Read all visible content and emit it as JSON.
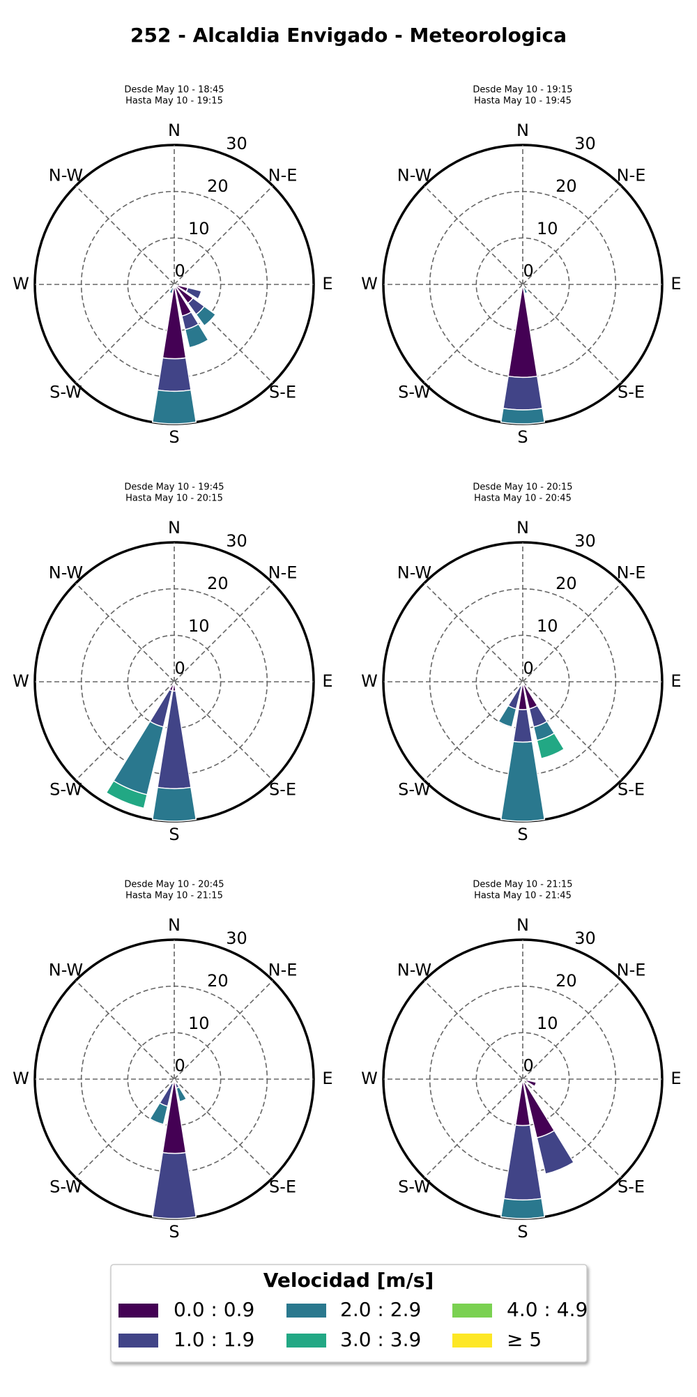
{
  "title": "252 - Alcaldia Envigado - Meteorologica",
  "legend": {
    "title": "Velocidad [m/s]",
    "entries": [
      {
        "name": "0.0 : 0.9",
        "color": "#440154"
      },
      {
        "name": "1.0 : 1.9",
        "color": "#414487"
      },
      {
        "name": "2.0 : 2.9",
        "color": "#2a788e"
      },
      {
        "name": "3.0 : 3.9",
        "color": "#22a884"
      },
      {
        "name": "4.0 : 4.9",
        "color": "#7ad151"
      },
      {
        "name": "≥ 5",
        "color": "#fde725"
      }
    ]
  },
  "chart_data": [
    {
      "type": "windrose",
      "subtitle": [
        "Desde May 10 - 18:45",
        "Hasta May 10 - 19:15"
      ],
      "categories": [
        "N",
        null,
        "N-E",
        null,
        "E",
        null,
        "S-E",
        null,
        "S",
        null,
        "S-W",
        null,
        "W",
        null,
        "N-W",
        null
      ],
      "rlim": [
        0,
        30
      ],
      "rticks": [
        0,
        10,
        20,
        30
      ],
      "series": [
        {
          "values": [
            0,
            0,
            0,
            0,
            0,
            3,
            5,
            7,
            16,
            0,
            0,
            0,
            0,
            0,
            0,
            0
          ]
        },
        {
          "values": [
            0,
            0,
            0,
            0,
            0,
            3,
            3,
            3,
            7,
            0,
            0,
            0,
            0,
            0,
            0,
            0
          ]
        },
        {
          "values": [
            0,
            0,
            0,
            0,
            0,
            0,
            3,
            4,
            7,
            2,
            0,
            0,
            0,
            0,
            0,
            0
          ]
        },
        {
          "values": [
            0,
            0,
            0,
            0,
            0,
            0,
            0,
            0,
            0,
            0,
            0,
            0,
            0,
            0,
            0,
            0
          ]
        },
        {
          "values": [
            0,
            0,
            0,
            0,
            0,
            0,
            0,
            0,
            0,
            0,
            0,
            0,
            0,
            0,
            0,
            0
          ]
        },
        {
          "values": [
            0,
            0,
            0,
            0,
            0,
            0,
            0,
            0,
            0,
            0,
            0,
            0,
            0,
            0,
            0,
            0
          ]
        }
      ]
    },
    {
      "type": "windrose",
      "subtitle": [
        "Desde May 10 - 19:15",
        "Hasta May 10 - 19:45"
      ],
      "categories": [
        "N",
        null,
        "N-E",
        null,
        "E",
        null,
        "S-E",
        null,
        "S",
        null,
        "S-W",
        null,
        "W",
        null,
        "N-W",
        null
      ],
      "rlim": [
        0,
        30
      ],
      "rticks": [
        0,
        10,
        20,
        30
      ],
      "series": [
        {
          "values": [
            0,
            0,
            0,
            0,
            0,
            0,
            0,
            0,
            20,
            0,
            0,
            0,
            0,
            0,
            0,
            0
          ]
        },
        {
          "values": [
            0,
            0,
            0,
            0,
            0,
            0,
            0,
            0,
            7,
            0,
            0,
            0,
            0,
            0,
            0,
            0
          ]
        },
        {
          "values": [
            0,
            0,
            0,
            0,
            0,
            0,
            0,
            2,
            3,
            0,
            0,
            0,
            0,
            0,
            0,
            0
          ]
        },
        {
          "values": [
            0,
            0,
            0,
            0,
            0,
            0,
            0,
            0,
            0,
            0,
            0,
            0,
            0,
            0,
            0,
            0
          ]
        },
        {
          "values": [
            0,
            0,
            0,
            0,
            0,
            0,
            0,
            0,
            0,
            0,
            0,
            0,
            0,
            0,
            0,
            0
          ]
        },
        {
          "values": [
            0,
            0,
            0,
            0,
            0,
            0,
            0,
            0,
            0,
            0,
            0,
            0,
            0,
            0,
            0,
            0
          ]
        }
      ]
    },
    {
      "type": "windrose",
      "subtitle": [
        "Desde May 10 - 19:45",
        "Hasta May 10 - 20:15"
      ],
      "categories": [
        "N",
        null,
        "N-E",
        null,
        "E",
        null,
        "S-E",
        null,
        "S",
        null,
        "S-W",
        null,
        "W",
        null,
        "N-W",
        null
      ],
      "rlim": [
        0,
        30
      ],
      "rticks": [
        0,
        10,
        20,
        30
      ],
      "series": [
        {
          "values": [
            0,
            0,
            0,
            0,
            0,
            0,
            0,
            0,
            2,
            2,
            0,
            0,
            0,
            0,
            0,
            0
          ]
        },
        {
          "values": [
            0,
            0,
            0,
            0,
            0,
            0,
            0,
            0,
            21,
            8,
            0,
            0,
            0,
            0,
            0,
            0
          ]
        },
        {
          "values": [
            0,
            0,
            0,
            0,
            0,
            0,
            0,
            0,
            7,
            15,
            0,
            0,
            0,
            0,
            0,
            0
          ]
        },
        {
          "values": [
            0,
            0,
            0,
            0,
            0,
            0,
            0,
            0,
            0,
            3,
            0,
            0,
            0,
            0,
            0,
            0
          ]
        },
        {
          "values": [
            0,
            0,
            0,
            0,
            0,
            0,
            0,
            0,
            0,
            0,
            0,
            0,
            0,
            0,
            0,
            0
          ]
        },
        {
          "values": [
            0,
            0,
            0,
            0,
            0,
            0,
            0,
            0,
            0,
            0,
            0,
            0,
            0,
            0,
            0,
            0
          ]
        }
      ]
    },
    {
      "type": "windrose",
      "subtitle": [
        "Desde May 10 - 20:15",
        "Hasta May 10 - 20:45"
      ],
      "categories": [
        "N",
        null,
        "N-E",
        null,
        "E",
        null,
        "S-E",
        null,
        "S",
        null,
        "S-W",
        null,
        "W",
        null,
        "N-W",
        null
      ],
      "rlim": [
        0,
        30
      ],
      "rticks": [
        0,
        10,
        20,
        30
      ],
      "series": [
        {
          "values": [
            0,
            0,
            0,
            0,
            0,
            0,
            0,
            6,
            6,
            1,
            0,
            0,
            0,
            0,
            0,
            0
          ]
        },
        {
          "values": [
            0,
            0,
            0,
            0,
            0,
            0,
            0,
            4,
            7,
            5,
            0,
            0,
            0,
            0,
            0,
            0
          ]
        },
        {
          "values": [
            0,
            0,
            0,
            0,
            0,
            0,
            0,
            3,
            17,
            4,
            0,
            0,
            0,
            0,
            0,
            0
          ]
        },
        {
          "values": [
            0,
            0,
            0,
            0,
            0,
            0,
            0,
            4,
            0,
            0,
            0,
            0,
            0,
            0,
            0,
            0
          ]
        },
        {
          "values": [
            0,
            0,
            0,
            0,
            0,
            0,
            0,
            0,
            0,
            0,
            0,
            0,
            0,
            0,
            0,
            0
          ]
        },
        {
          "values": [
            0,
            0,
            0,
            0,
            0,
            0,
            0,
            0,
            0,
            0,
            0,
            0,
            0,
            0,
            0,
            0
          ]
        }
      ]
    },
    {
      "type": "windrose",
      "subtitle": [
        "Desde May 10 - 20:45",
        "Hasta May 10 - 21:15"
      ],
      "categories": [
        "N",
        null,
        "N-E",
        null,
        "E",
        null,
        "S-E",
        null,
        "S",
        null,
        "S-W",
        null,
        "W",
        null,
        "N-W",
        null
      ],
      "rlim": [
        0,
        30
      ],
      "rticks": [
        0,
        10,
        20,
        30
      ],
      "series": [
        {
          "values": [
            0,
            0,
            0,
            0,
            0,
            0,
            0,
            1,
            16,
            1,
            0,
            0,
            0,
            0,
            0,
            0
          ]
        },
        {
          "values": [
            0,
            0,
            0,
            0,
            0,
            0,
            0,
            1,
            14,
            5,
            0,
            0,
            0,
            0,
            0,
            0
          ]
        },
        {
          "values": [
            0,
            0,
            0,
            0,
            0,
            0,
            0,
            3,
            0,
            4,
            0,
            0,
            0,
            0,
            0,
            0
          ]
        },
        {
          "values": [
            0,
            0,
            0,
            0,
            0,
            0,
            0,
            0,
            0,
            0,
            0,
            0,
            0,
            0,
            0,
            0
          ]
        },
        {
          "values": [
            0,
            0,
            0,
            0,
            0,
            0,
            0,
            0,
            0,
            0,
            0,
            0,
            0,
            0,
            0,
            0
          ]
        },
        {
          "values": [
            0,
            0,
            0,
            0,
            0,
            0,
            0,
            0,
            0,
            0,
            0,
            0,
            0,
            0,
            0,
            0
          ]
        }
      ]
    },
    {
      "type": "windrose",
      "subtitle": [
        "Desde May 10 - 21:15",
        "Hasta May 10 - 21:45"
      ],
      "categories": [
        "N",
        null,
        "N-E",
        null,
        "E",
        null,
        "S-E",
        null,
        "S",
        null,
        "S-W",
        null,
        "W",
        null,
        "N-W",
        null
      ],
      "rlim": [
        0,
        30
      ],
      "rticks": [
        0,
        10,
        20,
        30
      ],
      "series": [
        {
          "values": [
            0,
            0,
            0,
            0,
            0,
            3,
            0,
            13,
            10,
            0,
            0,
            0,
            0,
            0,
            0,
            0
          ]
        },
        {
          "values": [
            0,
            0,
            0,
            0,
            0,
            0,
            0,
            8,
            16,
            0,
            0,
            0,
            0,
            0,
            0,
            0
          ]
        },
        {
          "values": [
            0,
            0,
            0,
            0,
            0,
            0,
            0,
            0,
            4,
            0,
            0,
            0,
            0,
            0,
            0,
            0
          ]
        },
        {
          "values": [
            0,
            0,
            0,
            0,
            0,
            0,
            0,
            0,
            0,
            0,
            0,
            0,
            0,
            0,
            0,
            0
          ]
        },
        {
          "values": [
            0,
            0,
            0,
            0,
            0,
            0,
            0,
            0,
            0,
            0,
            0,
            0,
            0,
            0,
            0,
            0
          ]
        },
        {
          "values": [
            0,
            0,
            0,
            0,
            0,
            0,
            0,
            0,
            0,
            0,
            0,
            0,
            0,
            0,
            0,
            0
          ]
        }
      ]
    }
  ]
}
